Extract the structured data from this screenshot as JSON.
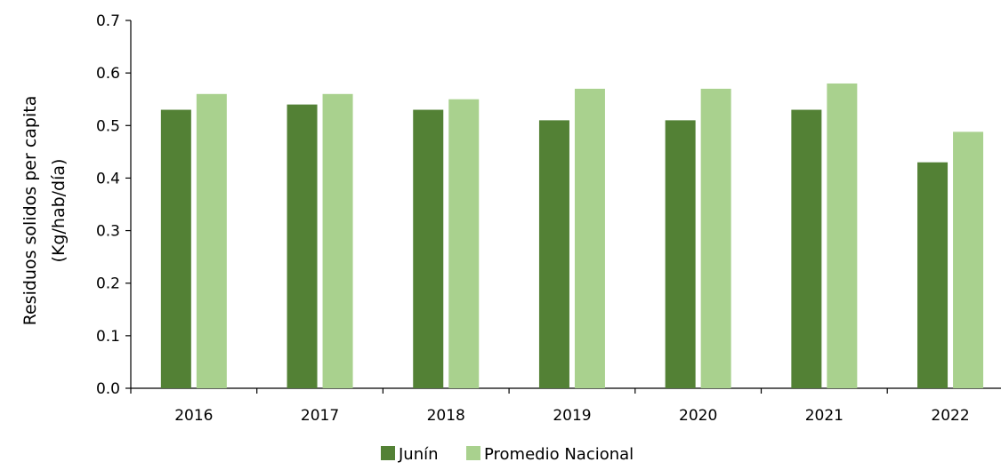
{
  "chart_data": {
    "type": "bar",
    "categories": [
      "2016",
      "2017",
      "2018",
      "2019",
      "2020",
      "2021",
      "2022"
    ],
    "series": [
      {
        "name": "Junín",
        "color": "#538135",
        "values": [
          0.53,
          0.54,
          0.53,
          0.51,
          0.51,
          0.53,
          0.43
        ]
      },
      {
        "name": "Promedio Nacional",
        "color": "#a9d18e",
        "values": [
          0.56,
          0.56,
          0.55,
          0.57,
          0.57,
          0.58,
          0.488
        ]
      }
    ],
    "ylabel_line1": "Residuos solidos per capita",
    "ylabel_line2": "(Kg/hab/día)",
    "ylim": [
      0,
      0.7
    ],
    "yticks": [
      "0.0",
      "0.1",
      "0.2",
      "0.3",
      "0.4",
      "0.5",
      "0.6",
      "0.7"
    ],
    "grid": false,
    "legend_position": "bottom-center"
  }
}
